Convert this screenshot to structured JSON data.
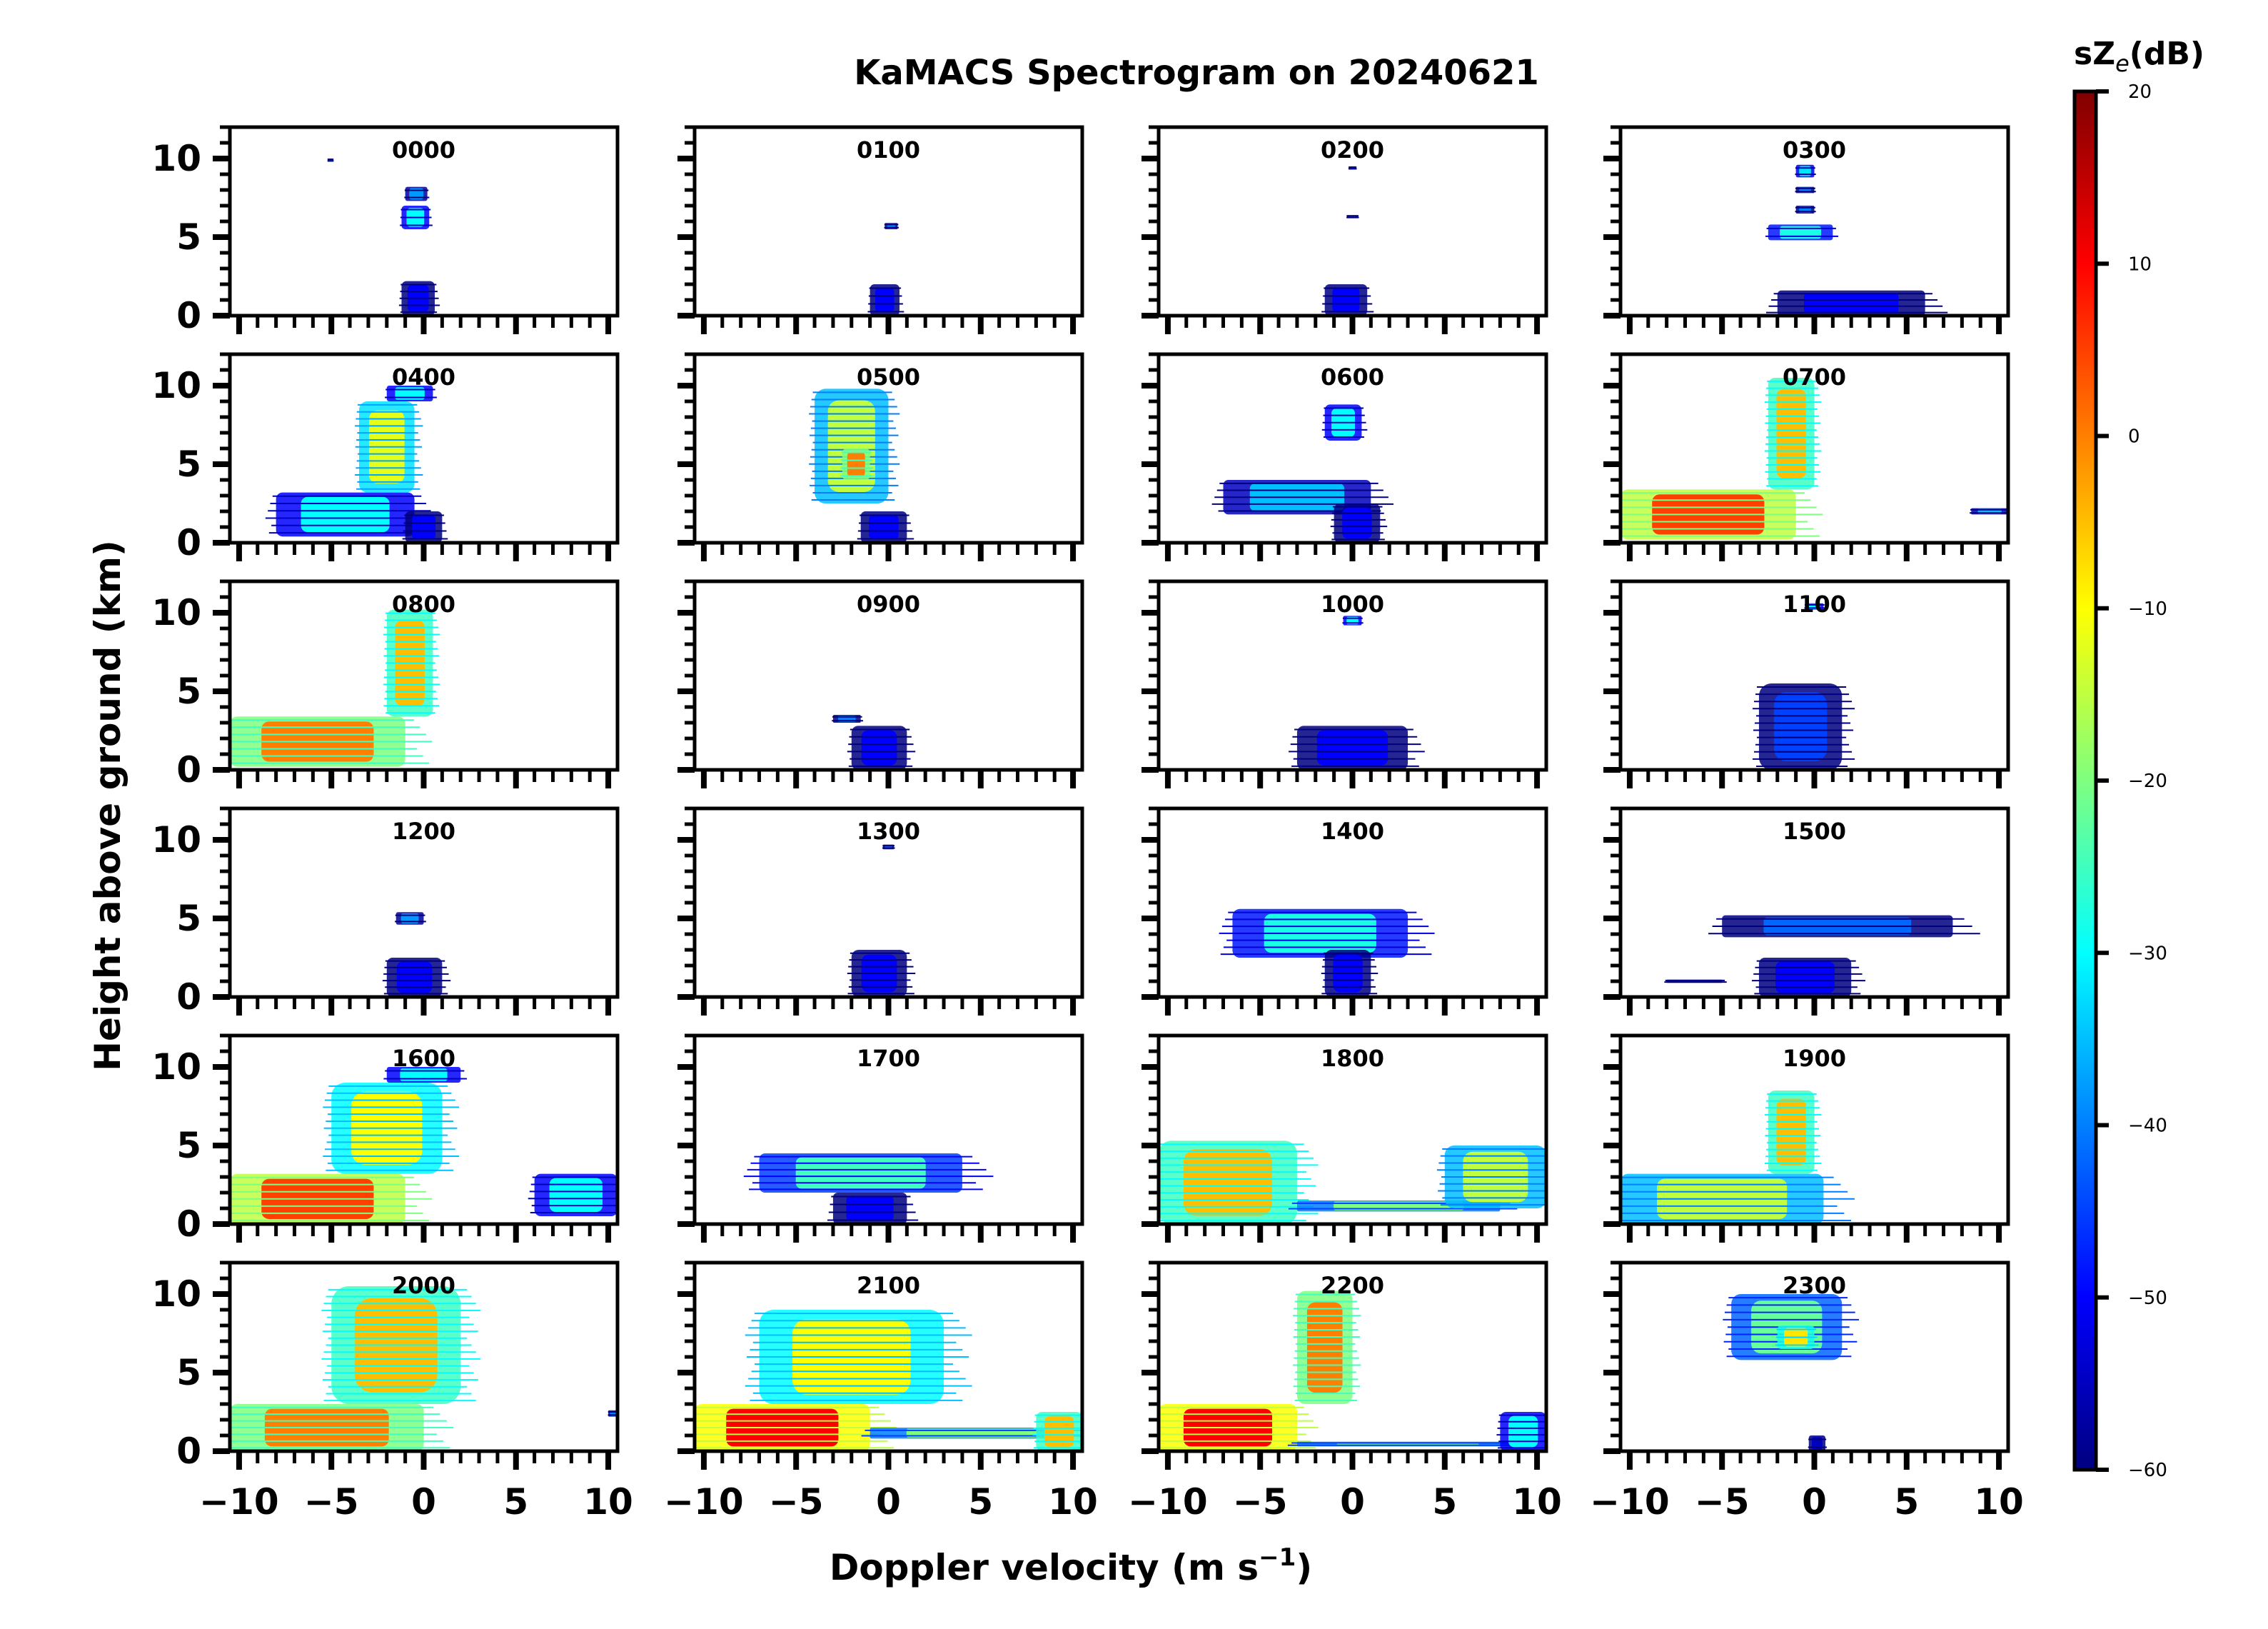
{
  "chart_data": {
    "type": "heatmap",
    "title": "KaMACS Spectrogram on 20240621",
    "xlabel": "Doppler velocity (m s",
    "xlabel_sup": "−1",
    "xlabel_close": ")",
    "ylabel": "Height above ground (km)",
    "xlim": [
      -10.5,
      10.5
    ],
    "ylim": [
      0,
      12
    ],
    "x_ticks": [
      -10,
      -5,
      0,
      5,
      10
    ],
    "x_tick_labels": [
      "−10",
      "−5",
      "0",
      "5",
      "10"
    ],
    "y_ticks": [
      0,
      5,
      10
    ],
    "y_tick_labels": [
      "0",
      "5",
      "10"
    ],
    "grid": false,
    "layout": {
      "rows": 6,
      "cols": 4
    },
    "colorbar": {
      "label": "sZ",
      "label_sub": "e",
      "label_unit": "(dB)",
      "range": [
        -60,
        20
      ],
      "ticks": [
        20,
        10,
        0,
        -10,
        -20,
        -30,
        -40,
        -50,
        -60
      ],
      "tick_labels": [
        "20",
        "10",
        "0",
        "−10",
        "−20",
        "−30",
        "−40",
        "−50",
        "−60"
      ],
      "colormap": "jet",
      "colors": [
        "#00007f",
        "#0000ff",
        "#007fff",
        "#00ffff",
        "#7fff7f",
        "#ffff00",
        "#ff7f00",
        "#ff0000",
        "#7f0000"
      ]
    },
    "panels": [
      {
        "label": "0000",
        "features": [
          {
            "v": [
              -1.2,
              0.6
            ],
            "h": [
              0,
              2.2
            ],
            "z": -50
          },
          {
            "v": [
              -1.2,
              0.3
            ],
            "h": [
              5.5,
              7.0
            ],
            "z": -30
          },
          {
            "v": [
              -1.0,
              0.2
            ],
            "h": [
              7.3,
              8.2
            ],
            "z": -38
          },
          {
            "v": [
              -5.2,
              -4.9
            ],
            "h": [
              9.8,
              10.0
            ],
            "z": -40
          }
        ]
      },
      {
        "label": "0100",
        "features": [
          {
            "v": [
              -1.0,
              0.6
            ],
            "h": [
              0,
              2.0
            ],
            "z": -50
          },
          {
            "v": [
              -0.2,
              0.5
            ],
            "h": [
              5.5,
              5.9
            ],
            "z": -40
          }
        ]
      },
      {
        "label": "0200",
        "features": [
          {
            "v": [
              -1.5,
              0.8
            ],
            "h": [
              0,
              2.0
            ],
            "z": -50
          },
          {
            "v": [
              -0.3,
              0.3
            ],
            "h": [
              6.2,
              6.4
            ],
            "z": -40
          },
          {
            "v": [
              -0.2,
              0.2
            ],
            "h": [
              9.3,
              9.5
            ],
            "z": -40
          }
        ]
      },
      {
        "label": "0300",
        "features": [
          {
            "v": [
              -2.0,
              6.0
            ],
            "h": [
              0,
              1.6
            ],
            "z": -50
          },
          {
            "v": [
              -2.5,
              1.0
            ],
            "h": [
              4.8,
              5.8
            ],
            "z": -28
          },
          {
            "v": [
              -1.0,
              0.0
            ],
            "h": [
              6.5,
              7.0
            ],
            "z": -40
          },
          {
            "v": [
              -1.0,
              0.0
            ],
            "h": [
              7.8,
              8.2
            ],
            "z": -40
          },
          {
            "v": [
              -1.0,
              0.0
            ],
            "h": [
              8.8,
              9.6
            ],
            "z": -32
          }
        ]
      },
      {
        "label": "0400",
        "features": [
          {
            "v": [
              -8.0,
              -0.5
            ],
            "h": [
              0.4,
              3.2
            ],
            "z": -30
          },
          {
            "v": [
              -1.0,
              1.0
            ],
            "h": [
              0,
              2.0
            ],
            "z": -50
          },
          {
            "v": [
              -3.5,
              -0.5
            ],
            "h": [
              3.2,
              9.0
            ],
            "z": -12
          },
          {
            "v": [
              -2.0,
              0.5
            ],
            "h": [
              9.0,
              10.0
            ],
            "z": -30
          }
        ]
      },
      {
        "label": "0500",
        "features": [
          {
            "v": [
              -4.0,
              0.0
            ],
            "h": [
              2.5,
              9.8
            ],
            "z": -15
          },
          {
            "v": [
              -2.5,
              -1.0
            ],
            "h": [
              4.0,
              6.0
            ],
            "z": 0
          },
          {
            "v": [
              -1.5,
              1.0
            ],
            "h": [
              0,
              2.0
            ],
            "z": -50
          }
        ]
      },
      {
        "label": "0600",
        "features": [
          {
            "v": [
              -7.0,
              1.0
            ],
            "h": [
              1.8,
              4.0
            ],
            "z": -35
          },
          {
            "v": [
              -1.0,
              1.5
            ],
            "h": [
              0,
              2.5
            ],
            "z": -50
          },
          {
            "v": [
              -1.5,
              0.5
            ],
            "h": [
              6.5,
              8.8
            ],
            "z": -30
          }
        ]
      },
      {
        "label": "0700",
        "features": [
          {
            "v": [
              -10.5,
              -1.0
            ],
            "h": [
              0.2,
              3.4
            ],
            "z": 5
          },
          {
            "v": [
              -2.5,
              0.0
            ],
            "h": [
              3.4,
              10.5
            ],
            "z": -5
          },
          {
            "v": [
              8.5,
              10.5
            ],
            "h": [
              1.8,
              2.2
            ],
            "z": -35
          }
        ]
      },
      {
        "label": "0800",
        "features": [
          {
            "v": [
              -10.5,
              -1.0
            ],
            "h": [
              0.2,
              3.4
            ],
            "z": 0
          },
          {
            "v": [
              -2.0,
              0.5
            ],
            "h": [
              3.4,
              10.2
            ],
            "z": -5
          }
        ]
      },
      {
        "label": "0900",
        "features": [
          {
            "v": [
              -2.0,
              1.0
            ],
            "h": [
              0,
              2.8
            ],
            "z": -50
          },
          {
            "v": [
              -3.0,
              -1.5
            ],
            "h": [
              3.0,
              3.5
            ],
            "z": -40
          }
        ]
      },
      {
        "label": "1000",
        "features": [
          {
            "v": [
              -3.0,
              3.0
            ],
            "h": [
              0,
              2.8
            ],
            "z": -50
          },
          {
            "v": [
              -0.5,
              0.5
            ],
            "h": [
              9.2,
              9.8
            ],
            "z": -30
          }
        ]
      },
      {
        "label": "1100",
        "features": [
          {
            "v": [
              -3.0,
              1.5
            ],
            "h": [
              0,
              5.5
            ],
            "z": -45
          },
          {
            "v": [
              -0.5,
              0.5
            ],
            "h": [
              10.2,
              10.6
            ],
            "z": -30
          }
        ]
      },
      {
        "label": "1200",
        "features": [
          {
            "v": [
              -2.0,
              1.0
            ],
            "h": [
              0,
              2.5
            ],
            "z": -50
          },
          {
            "v": [
              -1.5,
              0.0
            ],
            "h": [
              4.6,
              5.4
            ],
            "z": -38
          }
        ]
      },
      {
        "label": "1300",
        "features": [
          {
            "v": [
              -2.0,
              1.0
            ],
            "h": [
              0,
              3.0
            ],
            "z": -50
          },
          {
            "v": [
              -0.3,
              0.3
            ],
            "h": [
              9.4,
              9.7
            ],
            "z": -40
          }
        ]
      },
      {
        "label": "1400",
        "features": [
          {
            "v": [
              -6.5,
              3.0
            ],
            "h": [
              2.5,
              5.6
            ],
            "z": -28
          },
          {
            "v": [
              -1.5,
              1.0
            ],
            "h": [
              0,
              3.0
            ],
            "z": -50
          }
        ]
      },
      {
        "label": "1500",
        "features": [
          {
            "v": [
              -5.0,
              7.5
            ],
            "h": [
              3.8,
              5.2
            ],
            "z": -42
          },
          {
            "v": [
              -3.0,
              2.0
            ],
            "h": [
              0,
              2.5
            ],
            "z": -50
          },
          {
            "v": [
              -8.0,
              -5.0
            ],
            "h": [
              0.9,
              1.1
            ],
            "z": -45
          }
        ]
      },
      {
        "label": "1600",
        "features": [
          {
            "v": [
              -10.5,
              -1.0
            ],
            "h": [
              0,
              3.2
            ],
            "z": 5
          },
          {
            "v": [
              -5.0,
              1.0
            ],
            "h": [
              3.2,
              9.0
            ],
            "z": -10
          },
          {
            "v": [
              -2.0,
              2.0
            ],
            "h": [
              9.0,
              10.0
            ],
            "z": -30
          },
          {
            "v": [
              6.0,
              10.5
            ],
            "h": [
              0.5,
              3.2
            ],
            "z": -30
          }
        ]
      },
      {
        "label": "1700",
        "features": [
          {
            "v": [
              -7.0,
              4.0
            ],
            "h": [
              2.0,
              4.5
            ],
            "z": -25
          },
          {
            "v": [
              -3.0,
              1.0
            ],
            "h": [
              0,
              2.0
            ],
            "z": -50
          }
        ]
      },
      {
        "label": "1800",
        "features": [
          {
            "v": [
              -10.5,
              -3.0
            ],
            "h": [
              0,
              5.3
            ],
            "z": -5
          },
          {
            "v": [
              -3.0,
              8.0
            ],
            "h": [
              0.8,
              1.5
            ],
            "z": -20
          },
          {
            "v": [
              5.0,
              10.5
            ],
            "h": [
              1.0,
              5.0
            ],
            "z": -15
          }
        ]
      },
      {
        "label": "1900",
        "features": [
          {
            "v": [
              -10.5,
              0.5
            ],
            "h": [
              0,
              3.2
            ],
            "z": -15
          },
          {
            "v": [
              -2.5,
              0.0
            ],
            "h": [
              3.2,
              8.5
            ],
            "z": -5
          }
        ]
      },
      {
        "label": "2000",
        "features": [
          {
            "v": [
              -10.5,
              0.0
            ],
            "h": [
              0,
              3.0
            ],
            "z": 0
          },
          {
            "v": [
              -5.0,
              2.0
            ],
            "h": [
              3.0,
              10.5
            ],
            "z": -5
          },
          {
            "v": [
              10.0,
              10.5
            ],
            "h": [
              2.2,
              2.6
            ],
            "z": -40
          }
        ]
      },
      {
        "label": "2100",
        "features": [
          {
            "v": [
              -10.5,
              -1.0
            ],
            "h": [
              0,
              3.0
            ],
            "z": 10
          },
          {
            "v": [
              -7.0,
              3.0
            ],
            "h": [
              3.0,
              9.0
            ],
            "z": -10
          },
          {
            "v": [
              -1.0,
              10.0
            ],
            "h": [
              0.8,
              1.5
            ],
            "z": -20
          },
          {
            "v": [
              8.0,
              10.5
            ],
            "h": [
              0,
              2.5
            ],
            "z": -5
          }
        ]
      },
      {
        "label": "2200",
        "features": [
          {
            "v": [
              -10.5,
              -3.0
            ],
            "h": [
              0,
              3.0
            ],
            "z": 10
          },
          {
            "v": [
              -3.0,
              0.0
            ],
            "h": [
              3.0,
              10.2
            ],
            "z": 0
          },
          {
            "v": [
              -3.0,
              9.0
            ],
            "h": [
              0.3,
              0.6
            ],
            "z": -20
          },
          {
            "v": [
              8.0,
              10.5
            ],
            "h": [
              0,
              2.5
            ],
            "z": -30
          }
        ]
      },
      {
        "label": "2300",
        "features": [
          {
            "v": [
              -4.5,
              1.5
            ],
            "h": [
              5.8,
              10.0
            ],
            "z": -22
          },
          {
            "v": [
              -2.0,
              0.0
            ],
            "h": [
              6.5,
              8.0
            ],
            "z": -8
          },
          {
            "v": [
              -0.3,
              0.6
            ],
            "h": [
              0,
              1.0
            ],
            "z": -55
          }
        ]
      }
    ]
  }
}
